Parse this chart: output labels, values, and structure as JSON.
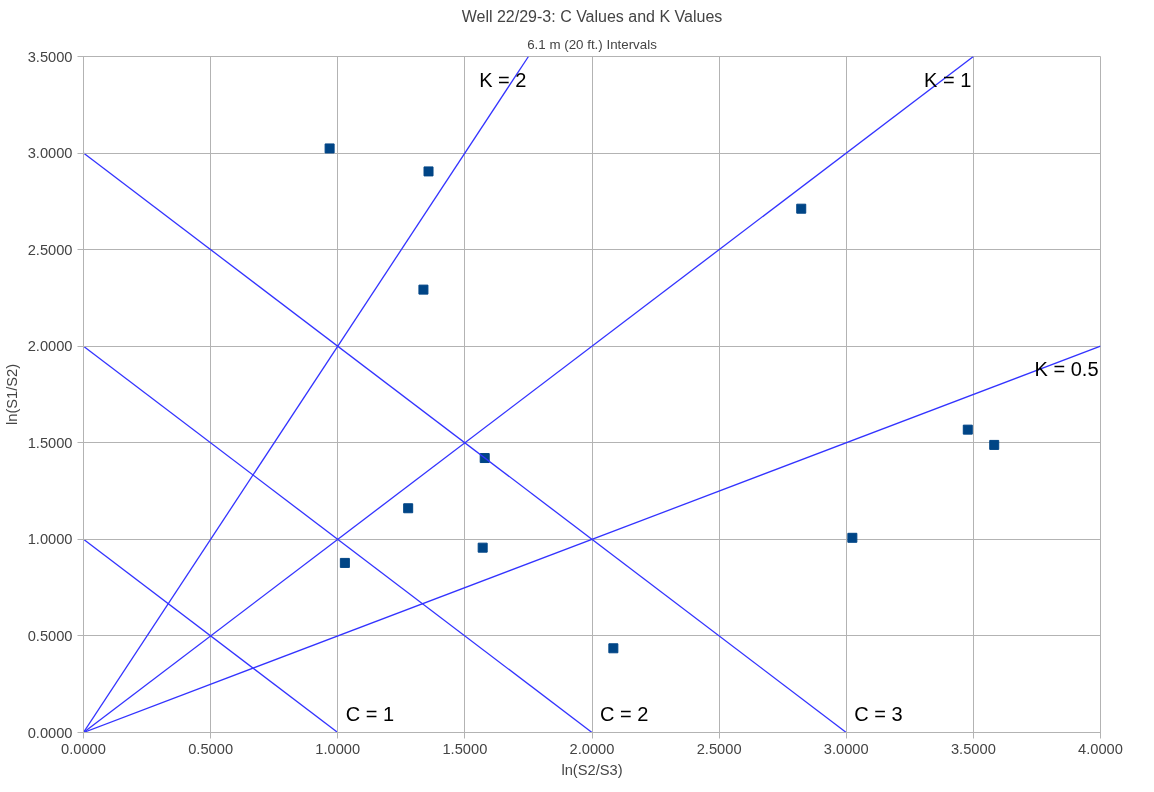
{
  "chart_data": {
    "type": "scatter",
    "title": "Well 22/29-3: C Values and K Values",
    "subtitle": "6.1 m (20 ft.) Intervals",
    "xlabel": "ln(S2/S3)",
    "ylabel": "ln(S1/S2)",
    "xlim": [
      0,
      4
    ],
    "ylim": [
      0,
      3.5
    ],
    "xticks": [
      {
        "value": 0,
        "label": "0.0000"
      },
      {
        "value": 0.5,
        "label": "0.5000"
      },
      {
        "value": 1,
        "label": "1.0000"
      },
      {
        "value": 1.5,
        "label": "1.5000"
      },
      {
        "value": 2,
        "label": "2.0000"
      },
      {
        "value": 2.5,
        "label": "2.5000"
      },
      {
        "value": 3,
        "label": "3.0000"
      },
      {
        "value": 3.5,
        "label": "3.5000"
      },
      {
        "value": 4,
        "label": "4.0000"
      }
    ],
    "yticks": [
      {
        "value": 0,
        "label": "0.0000"
      },
      {
        "value": 0.5,
        "label": "0.5000"
      },
      {
        "value": 1,
        "label": "1.0000"
      },
      {
        "value": 1.5,
        "label": "1.5000"
      },
      {
        "value": 2,
        "label": "2.0000"
      },
      {
        "value": 2.5,
        "label": "2.5000"
      },
      {
        "value": 3,
        "label": "3.0000"
      },
      {
        "value": 3.5,
        "label": "3.5000"
      }
    ],
    "grid": true,
    "series": [
      {
        "marker": "square",
        "color": "#004586",
        "x": [
          0.968,
          1.357,
          1.337,
          2.823,
          1.578,
          1.277,
          1.57,
          1.028,
          2.084,
          3.024,
          3.478,
          3.582
        ],
        "values": [
          3.024,
          2.905,
          2.293,
          2.712,
          1.421,
          1.161,
          0.957,
          0.878,
          0.436,
          1.008,
          1.568,
          1.489
        ]
      },
      {
        "type": "line",
        "name": "K = 2",
        "color": "#3333ff",
        "x": [
          0,
          1.75
        ],
        "values": [
          0,
          3.5
        ]
      },
      {
        "type": "line",
        "name": "K = 1",
        "color": "#3333ff",
        "x": [
          0,
          3.5
        ],
        "values": [
          0,
          3.5
        ]
      },
      {
        "type": "line",
        "name": "K = 0.5",
        "color": "#3333ff",
        "x": [
          0,
          4
        ],
        "values": [
          0,
          2
        ]
      },
      {
        "type": "line",
        "name": "C = 1",
        "color": "#3333ff",
        "x": [
          0,
          1
        ],
        "values": [
          1,
          0
        ]
      },
      {
        "type": "line",
        "name": "C = 2",
        "color": "#3333ff",
        "x": [
          0,
          2
        ],
        "values": [
          2,
          0
        ]
      },
      {
        "type": "line",
        "name": "C = 3",
        "color": "#3333ff",
        "x": [
          0,
          3
        ],
        "values": [
          3,
          0
        ]
      }
    ]
  }
}
